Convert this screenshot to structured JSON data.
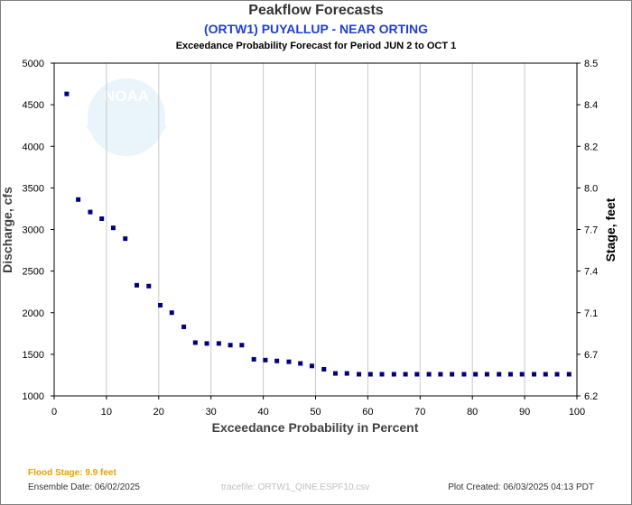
{
  "header": {
    "title": "Peakflow Forecasts",
    "station": "(ORTW1) PUYALLUP - NEAR ORTING",
    "period": "Exceedance Probability Forecast for Period JUN 2 to OCT 1"
  },
  "logo": {
    "text": "NOAA"
  },
  "footer": {
    "flood_stage": "Flood Stage: 9.9 feet",
    "ensemble_date": "Ensemble Date: 06/02/2025",
    "tracefile": "tracefile: ORTW1_QINE.ESPF10.csv",
    "plot_created": "Plot Created: 06/03/2025 04:13 PDT"
  },
  "colors": {
    "marker": "#00007f",
    "station_text": "#1f3fcf",
    "flood_stage": "#e8a000",
    "grid": "#c8c8c8",
    "logo": "#e9f4fb"
  },
  "chart_data": {
    "type": "scatter",
    "xlabel": "Exceedance Probability in Percent",
    "ylabel": "Discharge, cfs",
    "y2label": "Stage, feet",
    "xlim": [
      0,
      100
    ],
    "ylim": [
      1000,
      5000
    ],
    "xticks": [
      "0",
      "10",
      "20",
      "30",
      "40",
      "50",
      "60",
      "70",
      "80",
      "90",
      "100"
    ],
    "yticks": [
      "1000",
      "1500",
      "2000",
      "2500",
      "3000",
      "3500",
      "4000",
      "4500",
      "5000"
    ],
    "y2ticks": [
      {
        "label": "8.5",
        "discharge": 5000
      },
      {
        "label": "8.4",
        "discharge": 4500
      },
      {
        "label": "8.2",
        "discharge": 4000
      },
      {
        "label": "8.0",
        "discharge": 3500
      },
      {
        "label": "7.7",
        "discharge": 3000
      },
      {
        "label": "7.4",
        "discharge": 2500
      },
      {
        "label": "7.1",
        "discharge": 2000
      },
      {
        "label": "6.7",
        "discharge": 1500
      },
      {
        "label": "6.2",
        "discharge": 1000
      }
    ],
    "grid": "vertical",
    "series": [
      {
        "x": [
          2.4,
          4.6,
          6.9,
          9.1,
          11.3,
          13.6,
          15.8,
          18.1,
          20.3,
          22.5,
          24.8,
          27.0,
          29.2,
          31.5,
          33.7,
          35.9,
          38.2,
          40.4,
          42.6,
          44.9,
          47.1,
          49.3,
          51.6,
          53.8,
          56.0,
          58.3,
          60.5,
          62.7,
          65.0,
          67.2,
          69.4,
          71.7,
          73.9,
          76.1,
          78.4,
          80.6,
          82.8,
          85.1,
          87.3,
          89.5,
          91.8,
          94.0,
          96.2,
          98.5
        ],
        "y": [
          4630,
          3360,
          3210,
          3130,
          3020,
          2890,
          2330,
          2320,
          2090,
          2000,
          1830,
          1640,
          1630,
          1630,
          1610,
          1610,
          1440,
          1430,
          1420,
          1410,
          1390,
          1360,
          1320,
          1270,
          1270,
          1260,
          1260,
          1260,
          1260,
          1260,
          1260,
          1260,
          1260,
          1260,
          1260,
          1260,
          1260,
          1260,
          1260,
          1260,
          1260,
          1260,
          1260,
          1260
        ]
      }
    ]
  }
}
